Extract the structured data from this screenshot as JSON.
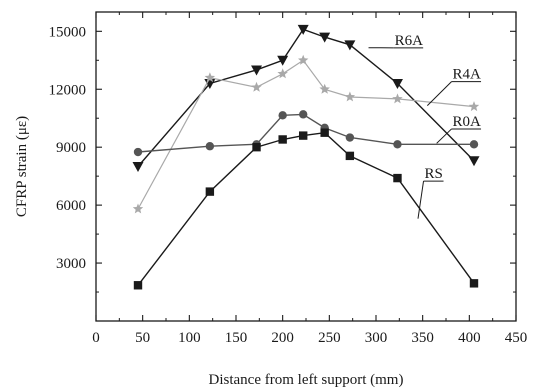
{
  "chart_data": {
    "type": "line",
    "xlabel": "Distance from left support (mm)",
    "ylabel": "CFRP strain (με)",
    "xlim": [
      0,
      450
    ],
    "ylim": [
      0,
      16000
    ],
    "xticks": [
      0,
      50,
      100,
      150,
      200,
      250,
      300,
      350,
      400,
      450
    ],
    "yticks": [
      3000,
      6000,
      9000,
      12000,
      15000
    ],
    "grid": false,
    "legend": "inline labels",
    "series": [
      {
        "name": "R6A",
        "marker": "triangle-down",
        "color": "#1a1a1a",
        "x": [
          45,
          122,
          172,
          200,
          222,
          245,
          272,
          323,
          405
        ],
        "y": [
          8000,
          12300,
          13000,
          13500,
          15100,
          14700,
          14300,
          12300,
          8300
        ]
      },
      {
        "name": "R4A",
        "marker": "star",
        "color": "#a9a9a9",
        "x": [
          45,
          122,
          172,
          200,
          222,
          245,
          272,
          323,
          405
        ],
        "y": [
          5800,
          12600,
          12100,
          12800,
          13500,
          12000,
          11600,
          11500,
          11100
        ]
      },
      {
        "name": "R0A",
        "marker": "circle",
        "color": "#555555",
        "x": [
          45,
          122,
          172,
          200,
          222,
          245,
          272,
          323,
          405
        ],
        "y": [
          8750,
          9050,
          9150,
          10650,
          10700,
          10000,
          9500,
          9150,
          9150
        ]
      },
      {
        "name": "RS",
        "marker": "square",
        "color": "#1a1a1a",
        "x": [
          45,
          122,
          172,
          200,
          222,
          245,
          272,
          323,
          405
        ],
        "y": [
          1850,
          6700,
          9000,
          9400,
          9600,
          9750,
          8550,
          7400,
          1950
        ]
      }
    ],
    "labels": [
      {
        "series": "R6A",
        "text": "R6A",
        "at": [
          320,
          14300
        ],
        "pointer": [
          292,
          14150
        ]
      },
      {
        "series": "R4A",
        "text": "R4A",
        "at": [
          382,
          12550
        ],
        "pointer": [
          355,
          11150
        ]
      },
      {
        "series": "R0A",
        "text": "R0A",
        "at": [
          382,
          10100
        ],
        "pointer": [
          365,
          9200
        ]
      },
      {
        "series": "RS",
        "text": "RS",
        "at": [
          352,
          7400
        ],
        "pointer": [
          345,
          5300
        ]
      }
    ]
  }
}
